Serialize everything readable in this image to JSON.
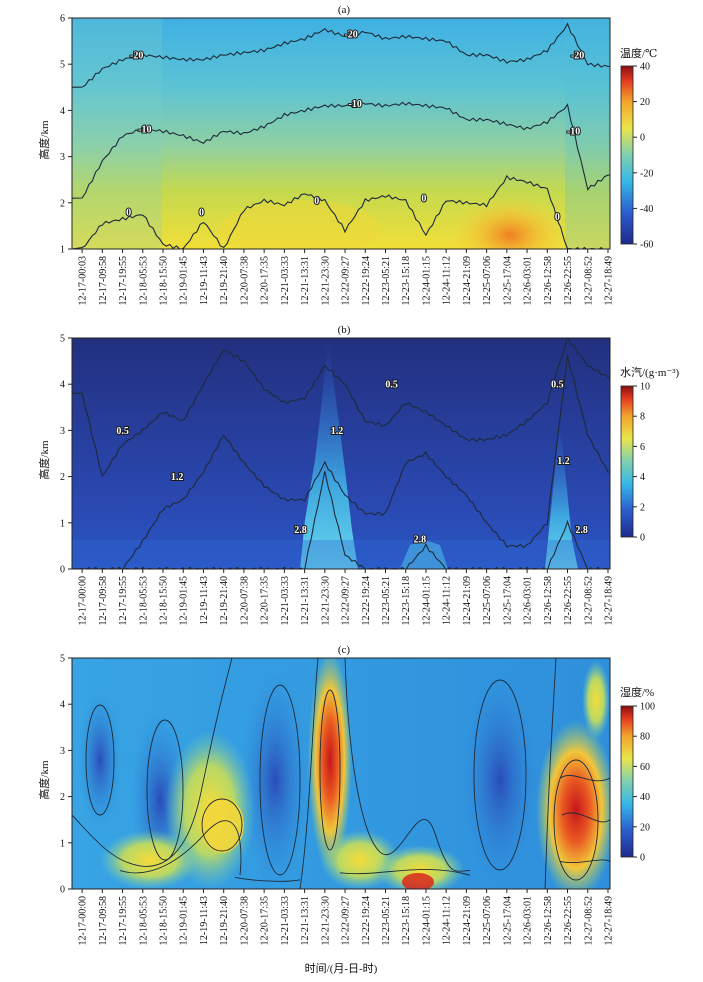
{
  "chart_data": [
    {
      "id": "a",
      "type": "heatmap",
      "title": "(a)",
      "ylabel": "高度/km",
      "ylim": [
        1,
        6
      ],
      "yticks": [
        1,
        2,
        3,
        4,
        5,
        6
      ],
      "xticks": [
        "12-17-00:03",
        "12-17-09:58",
        "12-17-19:55",
        "12-18-05:53",
        "12-18-15:50",
        "12-19-01:45",
        "12-19-11:43",
        "12-19-21:40",
        "12-20-07:38",
        "12-20-17:35",
        "12-21-03:33",
        "12-21-13:31",
        "12-21-23:30",
        "12-22-09:27",
        "12-22-19:24",
        "12-23-05:21",
        "12-23-15:18",
        "12-24-01:15",
        "12-24-11:12",
        "12-24-21:09",
        "12-25-07:06",
        "12-25-17:04",
        "12-26-03:01",
        "12-26-12:58",
        "12-26-22:55",
        "12-27-08:52",
        "12-27-18:49"
      ],
      "colorbar": {
        "label": "温度/℃",
        "min": -60,
        "max": 40,
        "ticks": [
          40,
          20,
          0,
          -20,
          -40,
          -60
        ]
      },
      "contours": [
        {
          "level": "-20",
          "heights": [
            4.5,
            4.9,
            5.1,
            5.2,
            5.15,
            5.1,
            5.1,
            5.2,
            5.25,
            5.3,
            5.45,
            5.55,
            5.75,
            5.6,
            5.7,
            5.55,
            5.6,
            5.55,
            5.5,
            5.2,
            5.2,
            5.05,
            5.1,
            5.3,
            5.85,
            5.0,
            4.95
          ]
        },
        {
          "level": "-10",
          "heights": [
            2.1,
            2.9,
            3.45,
            3.6,
            3.55,
            3.45,
            3.3,
            3.55,
            3.5,
            3.65,
            3.9,
            4.0,
            4.1,
            4.1,
            4.15,
            4.1,
            4.15,
            4.1,
            4.05,
            3.8,
            3.8,
            3.7,
            3.6,
            3.75,
            4.1,
            2.3,
            2.6
          ]
        },
        {
          "level": "0",
          "heights": [
            1.0,
            1.55,
            1.65,
            1.75,
            1.1,
            1.0,
            1.6,
            1.0,
            1.85,
            2.05,
            1.95,
            2.2,
            2.05,
            1.4,
            2.05,
            2.15,
            2.05,
            1.3,
            2.05,
            2.0,
            1.95,
            2.55,
            2.45,
            2.3,
            1.0,
            1.0,
            1.0
          ]
        }
      ],
      "contour_labels": [
        {
          "text": "-20",
          "x": 3.2,
          "y": 5.2
        },
        {
          "text": "-20",
          "x": 13.8,
          "y": 5.65
        },
        {
          "text": "-20",
          "x": 25.0,
          "y": 5.2
        },
        {
          "text": "-10",
          "x": 3.6,
          "y": 3.6
        },
        {
          "text": "-10",
          "x": 14.0,
          "y": 4.15
        },
        {
          "text": "-10",
          "x": 24.8,
          "y": 3.55
        },
        {
          "text": "0",
          "x": 2.8,
          "y": 1.8
        },
        {
          "text": "0",
          "x": 6.4,
          "y": 1.8
        },
        {
          "text": "0",
          "x": 12.1,
          "y": 2.05
        },
        {
          "text": "0",
          "x": 17.4,
          "y": 2.1
        },
        {
          "text": "0",
          "x": 24.0,
          "y": 1.7
        }
      ]
    },
    {
      "id": "b",
      "type": "heatmap",
      "title": "(b)",
      "ylabel": "高度/km",
      "ylim": [
        0,
        5
      ],
      "yticks": [
        0,
        1,
        2,
        3,
        4,
        5
      ],
      "xticks": [
        "12-17-00:00",
        "12-17-09:58",
        "12-17-19:55",
        "12-18-05:53",
        "12-18-15:50",
        "12-19-01:45",
        "12-19-11:43",
        "12-19-21:40",
        "12-20-07:38",
        "12-20-17:35",
        "12-21-03:33",
        "12-21-13:31",
        "12-21-23:30",
        "12-22-09:27",
        "12-22-19:24",
        "12-23-05:21",
        "12-23-15:18",
        "12-24-01:15",
        "12-24-11:12",
        "12-24-21:09",
        "12-25-07:06",
        "12-25-17:04",
        "12-26-03:01",
        "12-26-12:58",
        "12-26-22:55",
        "12-27-08:52",
        "12-27-18:49"
      ],
      "colorbar": {
        "label": "水汽/(g·m⁻³)",
        "min": 0,
        "max": 10,
        "ticks": [
          10,
          8,
          6,
          4,
          2,
          0
        ]
      },
      "contours": [
        {
          "level": "0.5",
          "heights": [
            3.8,
            2.0,
            2.7,
            3.0,
            3.4,
            3.2,
            4.0,
            4.75,
            4.5,
            3.9,
            3.6,
            3.7,
            4.4,
            4.0,
            3.2,
            3.1,
            3.6,
            3.4,
            3.1,
            2.8,
            2.8,
            2.9,
            3.2,
            3.6,
            5.0,
            4.4,
            4.15
          ]
        },
        {
          "level": "1.2",
          "heights": [
            0.0,
            0.0,
            0.0,
            0.6,
            1.3,
            1.5,
            2.1,
            2.9,
            2.3,
            1.8,
            1.5,
            1.5,
            2.3,
            1.6,
            1.2,
            1.2,
            2.3,
            2.5,
            2.0,
            1.6,
            1.0,
            0.5,
            0.5,
            1.0,
            4.6,
            2.9,
            2.1
          ]
        },
        {
          "level": "2.8",
          "heights": [
            0,
            0,
            0,
            0,
            0,
            0,
            0,
            0,
            0,
            0,
            0,
            0,
            2.1,
            0.3,
            0,
            0,
            0,
            0.5,
            0,
            0,
            0,
            0,
            0,
            0,
            1.0,
            0,
            0
          ]
        }
      ],
      "contour_labels": [
        {
          "text": "0.5",
          "x": 2.5,
          "y": 3.0
        },
        {
          "text": "0.5",
          "x": 15.8,
          "y": 4.0
        },
        {
          "text": "0.5",
          "x": 24.0,
          "y": 4.0
        },
        {
          "text": "1.2",
          "x": 5.2,
          "y": 2.0
        },
        {
          "text": "1.2",
          "x": 13.1,
          "y": 3.0
        },
        {
          "text": "1.2",
          "x": 24.3,
          "y": 2.35
        },
        {
          "text": "2.8",
          "x": 11.3,
          "y": 0.85
        },
        {
          "text": "2.8",
          "x": 17.2,
          "y": 0.65
        },
        {
          "text": "2.8",
          "x": 25.2,
          "y": 0.85
        }
      ]
    },
    {
      "id": "c",
      "type": "heatmap",
      "title": "(c)",
      "ylabel": "高度/km",
      "xlabel": "时间/(月-日-时)",
      "ylim": [
        0,
        5
      ],
      "yticks": [
        0,
        1,
        2,
        3,
        4,
        5
      ],
      "xticks": [
        "12-17-00:00",
        "12-17-09:58",
        "12-17-19:55",
        "12-18-05:53",
        "12-18-15:50",
        "12-19-01:45",
        "12-19-11:43",
        "12-19-21:40",
        "12-20-07:38",
        "12-20-17:35",
        "12-21-03:33",
        "12-21-13:31",
        "12-21-23:30",
        "12-22-09:27",
        "12-22-19:24",
        "12-23-05:21",
        "12-23-15:18",
        "12-24-01:15",
        "12-24-11:12",
        "12-24-21:09",
        "12-25-07:06",
        "12-25-17:04",
        "12-26-03:01",
        "12-26-12:58",
        "12-26-22:55",
        "12-27-08:52",
        "12-27-18:49"
      ],
      "colorbar": {
        "label": "湿度/%",
        "min": 0,
        "max": 100,
        "ticks": [
          100,
          80,
          60,
          40,
          20,
          0
        ]
      },
      "contour_labels": []
    }
  ]
}
